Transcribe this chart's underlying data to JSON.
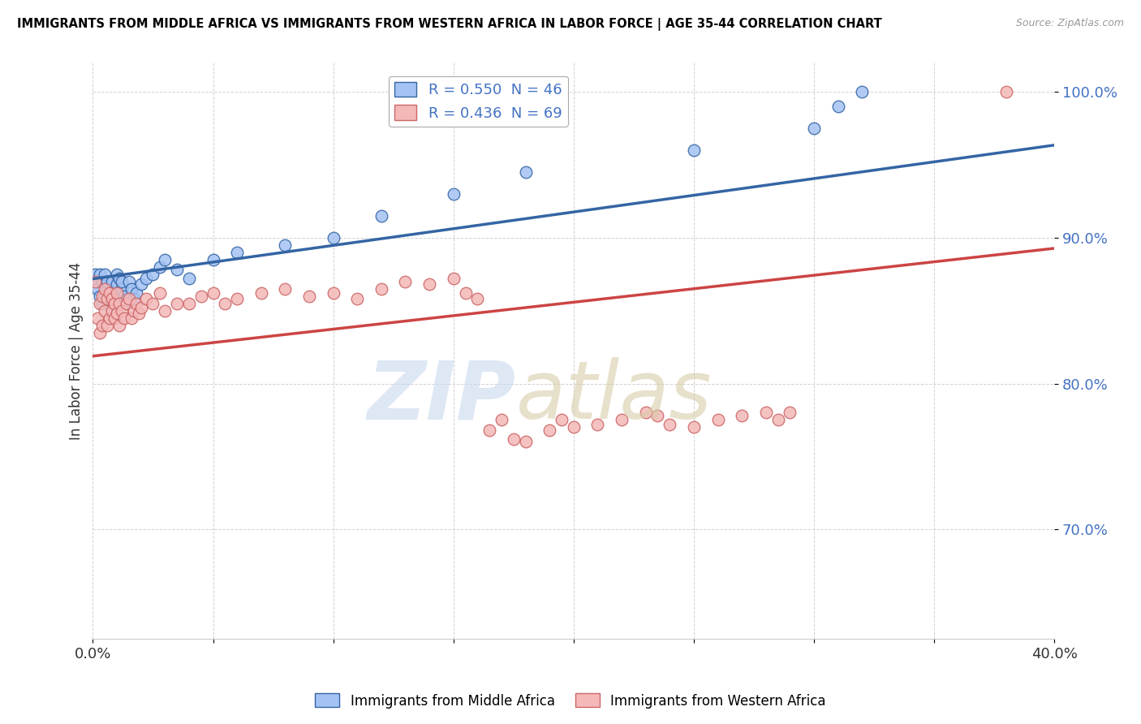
{
  "title": "IMMIGRANTS FROM MIDDLE AFRICA VS IMMIGRANTS FROM WESTERN AFRICA IN LABOR FORCE | AGE 35-44 CORRELATION CHART",
  "source": "Source: ZipAtlas.com",
  "ylabel": "In Labor Force | Age 35-44",
  "xlim": [
    0.0,
    0.4
  ],
  "ylim": [
    0.625,
    1.02
  ],
  "blue_R": 0.55,
  "blue_N": 46,
  "pink_R": 0.436,
  "pink_N": 69,
  "blue_color": "#a4c2f4",
  "pink_color": "#f4b8b8",
  "blue_line_color": "#3465a4",
  "pink_line_color": "#cc4444",
  "legend_label_blue": "Immigrants from Middle Africa",
  "legend_label_pink": "Immigrants from Western Africa",
  "blue_scatter_x": [
    0.001,
    0.002,
    0.002,
    0.003,
    0.003,
    0.004,
    0.004,
    0.005,
    0.005,
    0.006,
    0.006,
    0.007,
    0.007,
    0.008,
    0.008,
    0.009,
    0.009,
    0.01,
    0.01,
    0.011,
    0.012,
    0.012,
    0.013,
    0.014,
    0.015,
    0.016,
    0.017,
    0.018,
    0.02,
    0.022,
    0.025,
    0.028,
    0.03,
    0.035,
    0.04,
    0.05,
    0.06,
    0.08,
    0.1,
    0.12,
    0.15,
    0.18,
    0.25,
    0.3,
    0.31,
    0.32
  ],
  "blue_scatter_y": [
    0.875,
    0.87,
    0.865,
    0.86,
    0.875,
    0.87,
    0.855,
    0.86,
    0.875,
    0.865,
    0.87,
    0.855,
    0.86,
    0.865,
    0.87,
    0.858,
    0.862,
    0.875,
    0.868,
    0.872,
    0.865,
    0.87,
    0.86,
    0.855,
    0.87,
    0.865,
    0.858,
    0.862,
    0.868,
    0.872,
    0.875,
    0.88,
    0.885,
    0.878,
    0.872,
    0.885,
    0.89,
    0.895,
    0.9,
    0.915,
    0.93,
    0.945,
    0.96,
    0.975,
    0.99,
    1.0
  ],
  "pink_scatter_x": [
    0.001,
    0.002,
    0.003,
    0.003,
    0.004,
    0.004,
    0.005,
    0.005,
    0.006,
    0.006,
    0.007,
    0.007,
    0.008,
    0.008,
    0.009,
    0.009,
    0.01,
    0.01,
    0.011,
    0.011,
    0.012,
    0.013,
    0.014,
    0.015,
    0.016,
    0.017,
    0.018,
    0.019,
    0.02,
    0.022,
    0.025,
    0.028,
    0.03,
    0.035,
    0.04,
    0.045,
    0.05,
    0.055,
    0.06,
    0.07,
    0.08,
    0.09,
    0.1,
    0.11,
    0.12,
    0.13,
    0.14,
    0.15,
    0.155,
    0.16,
    0.165,
    0.17,
    0.175,
    0.18,
    0.19,
    0.195,
    0.2,
    0.21,
    0.22,
    0.23,
    0.235,
    0.24,
    0.25,
    0.26,
    0.27,
    0.28,
    0.285,
    0.29,
    0.38
  ],
  "pink_scatter_y": [
    0.87,
    0.845,
    0.835,
    0.855,
    0.84,
    0.86,
    0.85,
    0.865,
    0.84,
    0.858,
    0.845,
    0.862,
    0.85,
    0.858,
    0.845,
    0.855,
    0.862,
    0.848,
    0.84,
    0.855,
    0.85,
    0.845,
    0.855,
    0.858,
    0.845,
    0.85,
    0.855,
    0.848,
    0.852,
    0.858,
    0.855,
    0.862,
    0.85,
    0.855,
    0.855,
    0.86,
    0.862,
    0.855,
    0.858,
    0.862,
    0.865,
    0.86,
    0.862,
    0.858,
    0.865,
    0.87,
    0.868,
    0.872,
    0.862,
    0.858,
    0.768,
    0.775,
    0.762,
    0.76,
    0.768,
    0.775,
    0.77,
    0.772,
    0.775,
    0.78,
    0.778,
    0.772,
    0.77,
    0.775,
    0.778,
    0.78,
    0.775,
    0.78,
    1.0
  ]
}
